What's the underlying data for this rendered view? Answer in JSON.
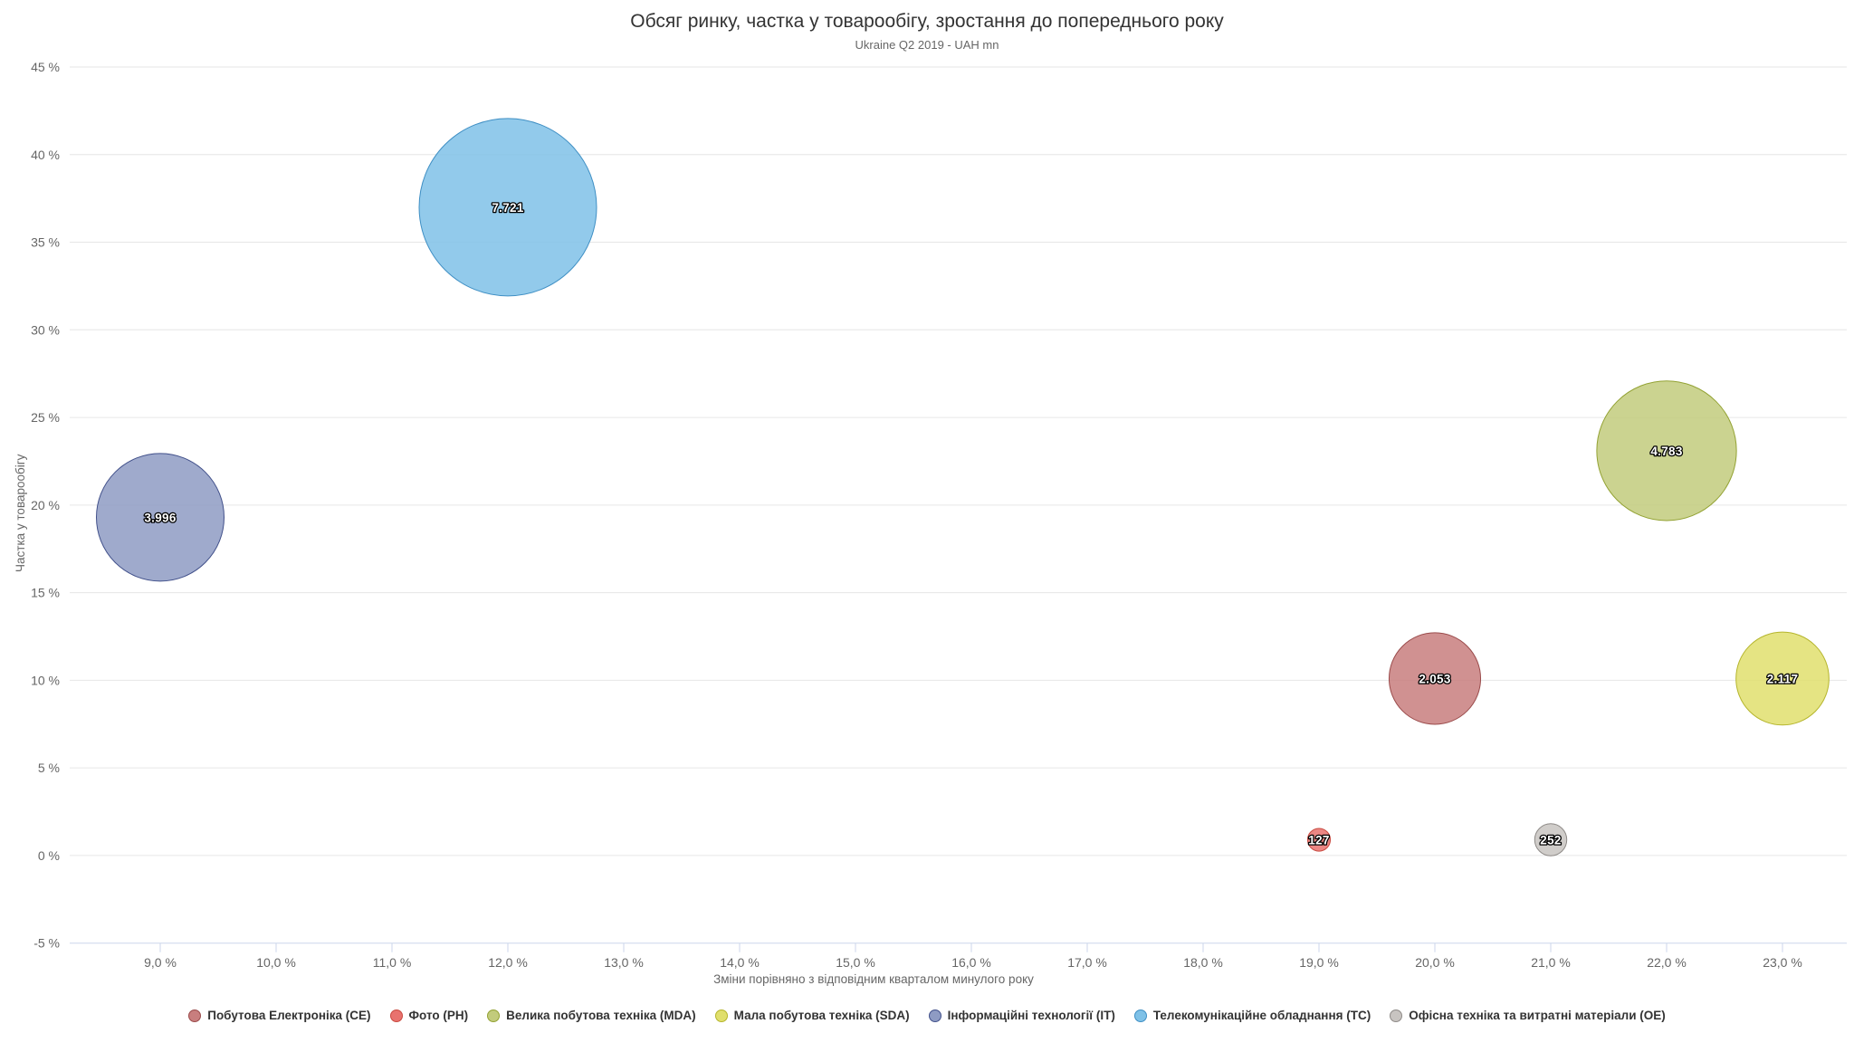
{
  "chart_data": {
    "type": "scatter",
    "variant": "bubble",
    "title": "Обсяг ринку, частка у товарообігу, зростання до попереднього року",
    "subtitle": "Ukraine Q2 2019 - UAH mn",
    "xlabel": "Зміни порівняно з відповідним кварталом минулого року",
    "ylabel": "Частка у товарообігу",
    "xlim": [
      8.2,
      23.6
    ],
    "ylim": [
      -5,
      45.7
    ],
    "grid": "horizontal-only",
    "legend_position": "bottom",
    "gridline_color": "#e6e6e6",
    "axis_line_color": "#ccd6eb",
    "x_ticks": [
      {
        "value": 9,
        "label": "9,0 %"
      },
      {
        "value": 10,
        "label": "10,0 %"
      },
      {
        "value": 11,
        "label": "11,0 %"
      },
      {
        "value": 12,
        "label": "12,0 %"
      },
      {
        "value": 13,
        "label": "13,0 %"
      },
      {
        "value": 14,
        "label": "14,0 %"
      },
      {
        "value": 15,
        "label": "15,0 %"
      },
      {
        "value": 16,
        "label": "16,0 %"
      },
      {
        "value": 17,
        "label": "17,0 %"
      },
      {
        "value": 18,
        "label": "18,0 %"
      },
      {
        "value": 19,
        "label": "19,0 %"
      },
      {
        "value": 20,
        "label": "20,0 %"
      },
      {
        "value": 21,
        "label": "21,0 %"
      },
      {
        "value": 22,
        "label": "22,0 %"
      },
      {
        "value": 23,
        "label": "23,0 %"
      }
    ],
    "y_ticks": [
      {
        "value": -5,
        "label": "-5 %"
      },
      {
        "value": 0,
        "label": "0 %"
      },
      {
        "value": 5,
        "label": "5 %"
      },
      {
        "value": 10,
        "label": "10 %"
      },
      {
        "value": 15,
        "label": "15 %"
      },
      {
        "value": 20,
        "label": "20 %"
      },
      {
        "value": 25,
        "label": "25 %"
      },
      {
        "value": 30,
        "label": "30 %"
      },
      {
        "value": 35,
        "label": "35 %"
      },
      {
        "value": 40,
        "label": "40 %"
      },
      {
        "value": 45,
        "label": "45 %"
      }
    ],
    "series": [
      {
        "code": "CE",
        "name": "Побутова Електроніка (CE)",
        "x": 20.0,
        "y": 10.1,
        "value": 2053,
        "label": "2.053",
        "color": "#c87e7e",
        "border": "#9a4b4b"
      },
      {
        "code": "PH",
        "name": "Фото (PH)",
        "x": 19.0,
        "y": 0.9,
        "value": 127,
        "label": "127",
        "color": "#e8726e",
        "border": "#c94a40"
      },
      {
        "code": "MDA",
        "name": "Велика побутова техніка (MDA)",
        "x": 22.0,
        "y": 23.1,
        "value": 4783,
        "label": "4.783",
        "color": "#c2cb7c",
        "border": "#93a233"
      },
      {
        "code": "SDA",
        "name": "Мала побутова техніка (SDA)",
        "x": 23.0,
        "y": 10.1,
        "value": 2117,
        "label": "2.117",
        "color": "#e0df6d",
        "border": "#b5b52c"
      },
      {
        "code": "IT",
        "name": "Інформаційні технології (IT)",
        "x": 9.0,
        "y": 19.3,
        "value": 3996,
        "label": "3.996",
        "color": "#8e9bc3",
        "border": "#41508a"
      },
      {
        "code": "TC",
        "name": "Телекомунікаційне обладнання (TC)",
        "x": 12.0,
        "y": 37.0,
        "value": 7721,
        "label": "7.721",
        "color": "#7fc1e7",
        "border": "#3f8fc4"
      },
      {
        "code": "OE",
        "name": "Офісна техніка та витратні матеріали (OE)",
        "x": 21.0,
        "y": 0.9,
        "value": 252,
        "label": "252",
        "color": "#c8c4c1",
        "border": "#8e8a87"
      }
    ]
  }
}
